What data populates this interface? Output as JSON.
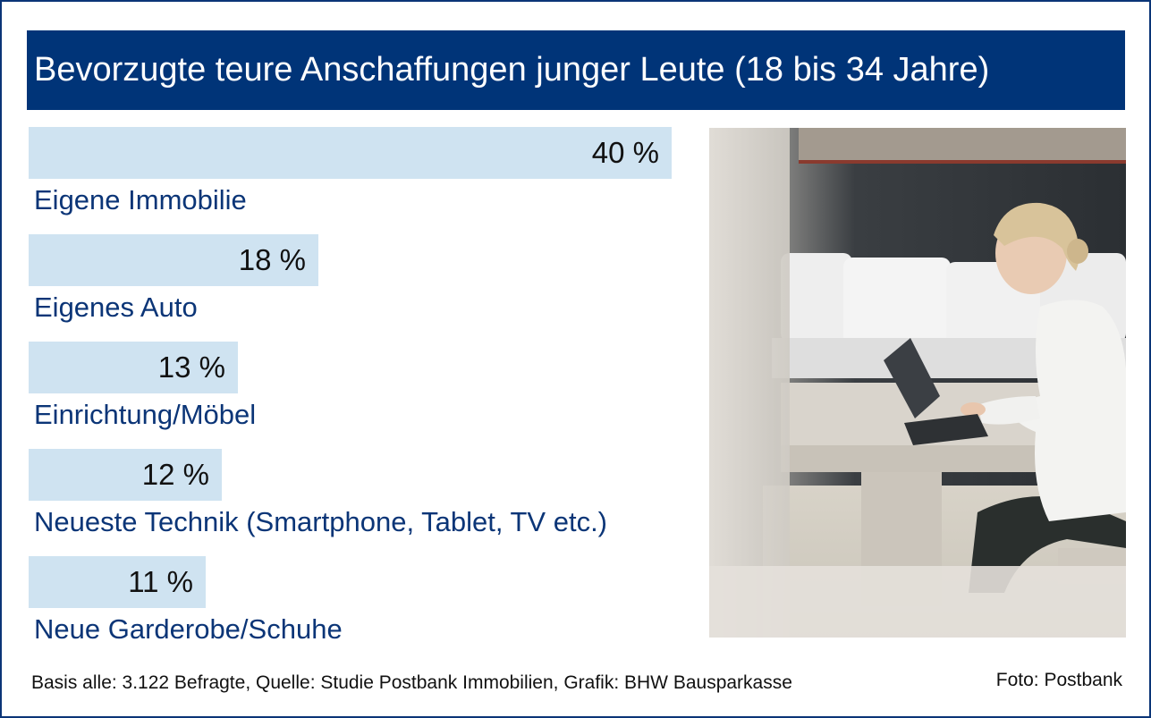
{
  "title": "Bevorzugte teure Anschaffungen junger Leute (18 bis 34 Jahre)",
  "chart_data": {
    "type": "bar",
    "orientation": "horizontal",
    "categories": [
      "Eigene Immobilie",
      "Eigenes Auto",
      "Einrichtung/Möbel",
      "Neueste Technik (Smartphone, Tablet, TV etc.)",
      "Neue Garderobe/Schuhe"
    ],
    "values": [
      40,
      18,
      13,
      12,
      11
    ],
    "value_labels": [
      "40 %",
      "18 %",
      "13 %",
      "12 %",
      "11 %"
    ],
    "unit": "%",
    "grid": false,
    "legend": "none"
  },
  "colors": {
    "title_bg": "#003478",
    "bar": "#cfe3f1",
    "label": "#0b3577",
    "border": "#0b3577"
  },
  "footer": {
    "source": "Basis alle: 3.122 Befragte, Quelle: Studie Postbank Immobilien, Grafik: BHW Bausparkasse",
    "photo_credit": "Foto: Postbank"
  },
  "photo": {
    "icon": "photo-woman-laptop-icon"
  }
}
